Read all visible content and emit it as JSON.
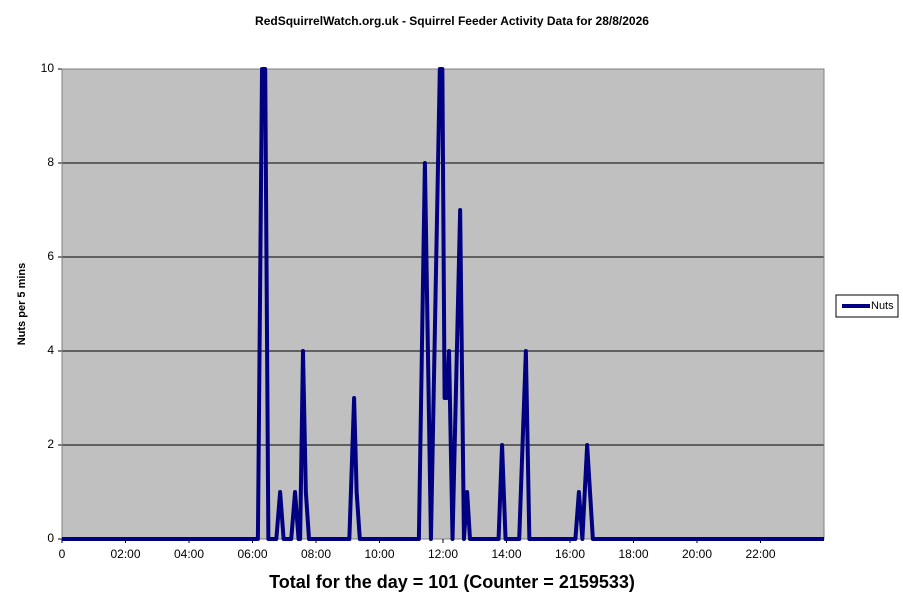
{
  "chart_data": {
    "type": "line",
    "title": "RedSquirrelWatch.org.uk  - Squirrel Feeder Activity Data for 28/8/2026",
    "y_label": "Nuts per 5 mins",
    "footer": "Total for the day = 101  (Counter = 2159533)",
    "x": [
      0,
      6.17,
      6.3,
      6.4,
      6.5,
      6.75,
      6.87,
      6.98,
      7.22,
      7.34,
      7.45,
      7.5,
      7.59,
      7.68,
      7.78,
      9.05,
      9.2,
      9.28,
      9.38,
      11.24,
      11.43,
      11.62,
      11.9,
      11.98,
      12.05,
      12.12,
      12.19,
      12.3,
      12.54,
      12.66,
      12.76,
      12.85,
      13.75,
      13.86,
      13.97,
      14.4,
      14.61,
      14.72,
      16.17,
      16.28,
      16.39,
      16.54,
      16.72,
      24
    ],
    "series": [
      {
        "name": "Nuts",
        "color": "#000080",
        "values": [
          0,
          0,
          10,
          10,
          0,
          0,
          1,
          0,
          0,
          1,
          0,
          0,
          4,
          1,
          0,
          0,
          3,
          1,
          0,
          0,
          8,
          0,
          10,
          10,
          3,
          3,
          4,
          0,
          7,
          0,
          1,
          0,
          0,
          2,
          0,
          0,
          4,
          0,
          0,
          1,
          0,
          2,
          0,
          0
        ]
      }
    ],
    "xlim": [
      0,
      24
    ],
    "xticks": [
      0,
      {
        "value": 2,
        "label": "02:00"
      },
      {
        "value": 4,
        "label": "04:00"
      },
      {
        "value": 6,
        "label": "06:00"
      },
      {
        "value": 8,
        "label": "08:00"
      },
      {
        "value": 10,
        "label": "10:00"
      },
      {
        "value": 12,
        "label": "12:00"
      },
      {
        "value": 14,
        "label": "14:00"
      },
      {
        "value": 16,
        "label": "16:00"
      },
      {
        "value": 18,
        "label": "18:00"
      },
      {
        "value": 20,
        "label": "20:00"
      },
      {
        "value": 22,
        "label": "22:00"
      }
    ],
    "ylim": [
      0,
      10
    ],
    "yticks": [
      0,
      2,
      4,
      6,
      8,
      10
    ],
    "grid": true,
    "legend": "right"
  }
}
